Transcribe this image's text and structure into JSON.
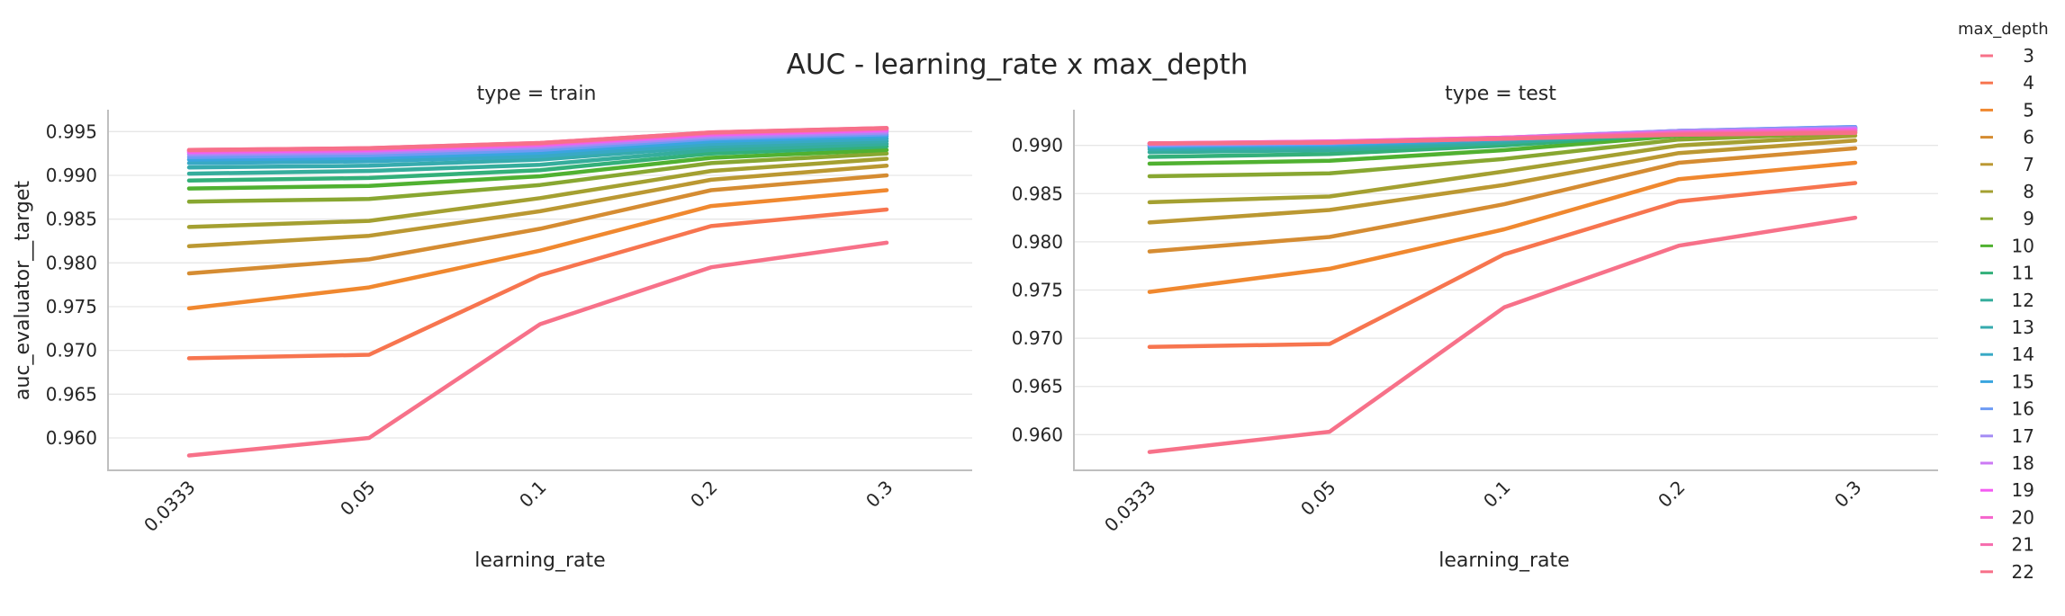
{
  "figure": {
    "title": "AUC - learning_rate x max_depth"
  },
  "chart_data": [
    {
      "type": "line",
      "title": "type = train",
      "xlabel": "learning_rate",
      "ylabel": "auc_evaluator__target",
      "categories": [
        "0.0333",
        "0.05",
        "0.1",
        "0.2",
        "0.3"
      ],
      "ylim": [
        0.9563,
        0.9975
      ],
      "yticks": [
        "0.960",
        "0.965",
        "0.970",
        "0.975",
        "0.980",
        "0.985",
        "0.990",
        "0.995"
      ],
      "grid": true,
      "legend": "right",
      "series": [
        {
          "name": "3",
          "color": "#f77189",
          "values": [
            0.958,
            0.96,
            0.973,
            0.9795,
            0.9823
          ]
        },
        {
          "name": "4",
          "color": "#f7754f",
          "values": [
            0.9691,
            0.9695,
            0.9786,
            0.9842,
            0.9861
          ]
        },
        {
          "name": "5",
          "color": "#f0882f",
          "values": [
            0.9748,
            0.9772,
            0.9814,
            0.9865,
            0.9883
          ]
        },
        {
          "name": "6",
          "color": "#d58c32",
          "values": [
            0.9788,
            0.9804,
            0.9839,
            0.9883,
            0.99
          ]
        },
        {
          "name": "7",
          "color": "#bb9832",
          "values": [
            0.9819,
            0.9831,
            0.9859,
            0.9895,
            0.9911
          ]
        },
        {
          "name": "8",
          "color": "#a4a031",
          "values": [
            0.9841,
            0.9848,
            0.9874,
            0.9905,
            0.9919
          ]
        },
        {
          "name": "9",
          "color": "#88a731",
          "values": [
            0.987,
            0.9873,
            0.9889,
            0.9914,
            0.9925
          ]
        },
        {
          "name": "10",
          "color": "#50b131",
          "values": [
            0.9885,
            0.9888,
            0.9899,
            0.992,
            0.9929
          ]
        },
        {
          "name": "11",
          "color": "#33b07a",
          "values": [
            0.9894,
            0.9897,
            0.9906,
            0.9925,
            0.9933
          ]
        },
        {
          "name": "12",
          "color": "#35ad9c",
          "values": [
            0.9902,
            0.9905,
            0.9912,
            0.9929,
            0.9936
          ]
        },
        {
          "name": "13",
          "color": "#36abae",
          "values": [
            0.9909,
            0.9911,
            0.9918,
            0.9933,
            0.9939
          ]
        },
        {
          "name": "14",
          "color": "#38a9c5",
          "values": [
            0.9914,
            0.9916,
            0.9922,
            0.9936,
            0.9942
          ]
        },
        {
          "name": "15",
          "color": "#3aa5df",
          "values": [
            0.9918,
            0.992,
            0.9926,
            0.9939,
            0.9945
          ]
        },
        {
          "name": "16",
          "color": "#6e9bf4",
          "values": [
            0.9921,
            0.9923,
            0.9929,
            0.9942,
            0.9947
          ]
        },
        {
          "name": "17",
          "color": "#a48cf4",
          "values": [
            0.9924,
            0.9926,
            0.9932,
            0.9944,
            0.9949
          ]
        },
        {
          "name": "18",
          "color": "#cc7af4",
          "values": [
            0.9926,
            0.9928,
            0.9934,
            0.9946,
            0.9951
          ]
        },
        {
          "name": "19",
          "color": "#f45cf2",
          "values": [
            0.9927,
            0.9929,
            0.9935,
            0.9947,
            0.9952
          ]
        },
        {
          "name": "20",
          "color": "#f565cc",
          "values": [
            0.9928,
            0.993,
            0.9936,
            0.9948,
            0.9953
          ]
        },
        {
          "name": "21",
          "color": "#f66bad",
          "values": [
            0.9929,
            0.9931,
            0.9937,
            0.9949,
            0.9954
          ]
        },
        {
          "name": "22",
          "color": "#f77089",
          "values": [
            0.9929,
            0.9931,
            0.9937,
            0.9949,
            0.9954
          ]
        }
      ]
    },
    {
      "type": "line",
      "title": "type = test",
      "xlabel": "learning_rate",
      "ylabel": "",
      "categories": [
        "0.0333",
        "0.05",
        "0.1",
        "0.2",
        "0.3"
      ],
      "ylim": [
        0.9563,
        0.9937
      ],
      "yticks": [
        "0.960",
        "0.965",
        "0.970",
        "0.975",
        "0.980",
        "0.985",
        "0.990"
      ],
      "grid": true,
      "legend": "right",
      "series": [
        {
          "name": "3",
          "color": "#f77189",
          "values": [
            0.9582,
            0.9603,
            0.9732,
            0.9796,
            0.9825
          ]
        },
        {
          "name": "4",
          "color": "#f7754f",
          "values": [
            0.9691,
            0.9694,
            0.9787,
            0.9842,
            0.9861
          ]
        },
        {
          "name": "5",
          "color": "#f0882f",
          "values": [
            0.9748,
            0.9772,
            0.9813,
            0.9865,
            0.9882
          ]
        },
        {
          "name": "6",
          "color": "#d58c32",
          "values": [
            0.979,
            0.9805,
            0.9839,
            0.9882,
            0.9897
          ]
        },
        {
          "name": "7",
          "color": "#bb9832",
          "values": [
            0.982,
            0.9833,
            0.9859,
            0.9892,
            0.9905
          ]
        },
        {
          "name": "8",
          "color": "#a4a031",
          "values": [
            0.9841,
            0.9847,
            0.9873,
            0.99,
            0.991
          ]
        },
        {
          "name": "9",
          "color": "#88a731",
          "values": [
            0.9868,
            0.9871,
            0.9886,
            0.9906,
            0.9913
          ]
        },
        {
          "name": "10",
          "color": "#50b131",
          "values": [
            0.9881,
            0.9884,
            0.9895,
            0.991,
            0.9915
          ]
        },
        {
          "name": "11",
          "color": "#33b07a",
          "values": [
            0.9888,
            0.9891,
            0.99,
            0.9912,
            0.9916
          ]
        },
        {
          "name": "12",
          "color": "#35ad9c",
          "values": [
            0.9893,
            0.9895,
            0.9903,
            0.9913,
            0.9917
          ]
        },
        {
          "name": "13",
          "color": "#36abae",
          "values": [
            0.9896,
            0.9898,
            0.9905,
            0.9914,
            0.9918
          ]
        },
        {
          "name": "14",
          "color": "#38a9c5",
          "values": [
            0.9898,
            0.99,
            0.9906,
            0.9915,
            0.9918
          ]
        },
        {
          "name": "15",
          "color": "#3aa5df",
          "values": [
            0.9899,
            0.9901,
            0.9907,
            0.9915,
            0.9919
          ]
        },
        {
          "name": "16",
          "color": "#6e9bf4",
          "values": [
            0.99,
            0.9902,
            0.9908,
            0.9915,
            0.9919
          ]
        },
        {
          "name": "17",
          "color": "#a48cf4",
          "values": [
            0.9901,
            0.9903,
            0.9908,
            0.9915,
            0.9918
          ]
        },
        {
          "name": "18",
          "color": "#cc7af4",
          "values": [
            0.9902,
            0.9903,
            0.9908,
            0.9914,
            0.9917
          ]
        },
        {
          "name": "19",
          "color": "#f45cf2",
          "values": [
            0.9902,
            0.9904,
            0.9908,
            0.9913,
            0.9916
          ]
        },
        {
          "name": "20",
          "color": "#f565cc",
          "values": [
            0.9902,
            0.9904,
            0.9908,
            0.9913,
            0.9915
          ]
        },
        {
          "name": "21",
          "color": "#f66bad",
          "values": [
            0.9902,
            0.9903,
            0.9907,
            0.9912,
            0.9914
          ]
        },
        {
          "name": "22",
          "color": "#f77089",
          "values": [
            0.9902,
            0.9903,
            0.9907,
            0.9911,
            0.9913
          ]
        }
      ]
    }
  ],
  "legend": {
    "title": "max_depth"
  }
}
